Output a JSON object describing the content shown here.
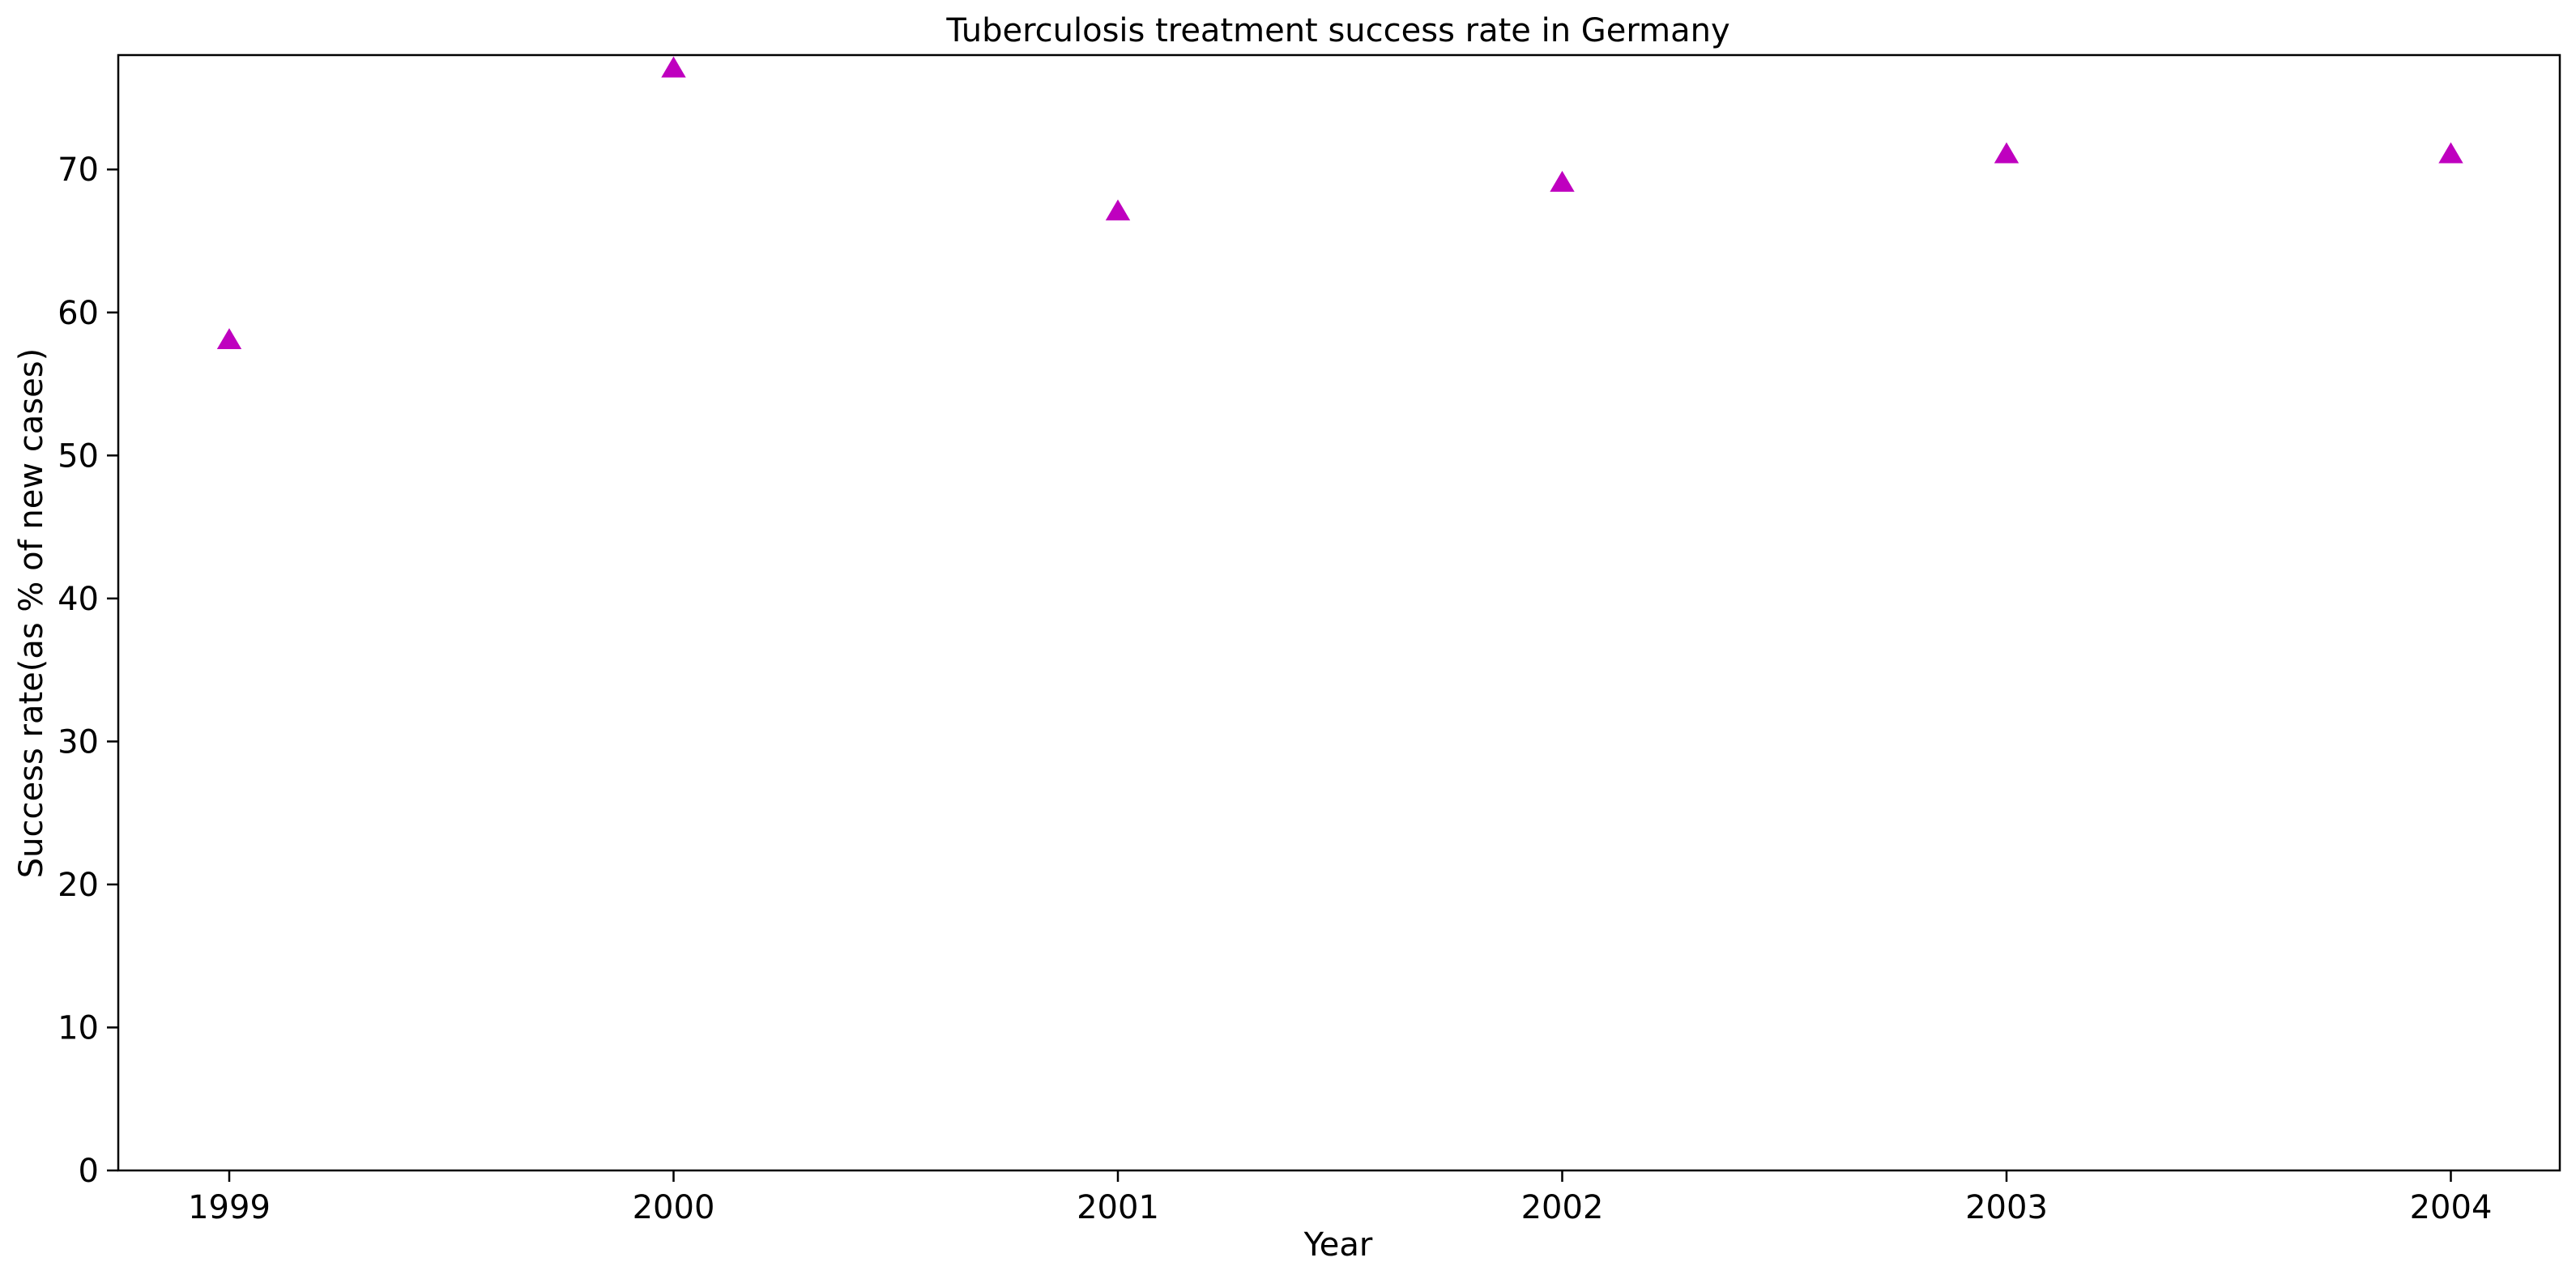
{
  "chart_data": {
    "type": "scatter",
    "title": "Tuberculosis treatment success rate in Germany",
    "xlabel": "Year",
    "ylabel": "Success rate(as % of new cases)",
    "x": [
      "1999",
      "2000",
      "2001",
      "2002",
      "2003",
      "2004"
    ],
    "series": [
      {
        "values": [
          58,
          77,
          67,
          69,
          71,
          71
        ],
        "marker": "triangle-up",
        "color": "#bf00bf"
      }
    ],
    "yticks": [
      0,
      10,
      20,
      30,
      40,
      50,
      60,
      70
    ],
    "ylim": [
      0,
      78
    ],
    "grid": false,
    "legend": "none"
  }
}
